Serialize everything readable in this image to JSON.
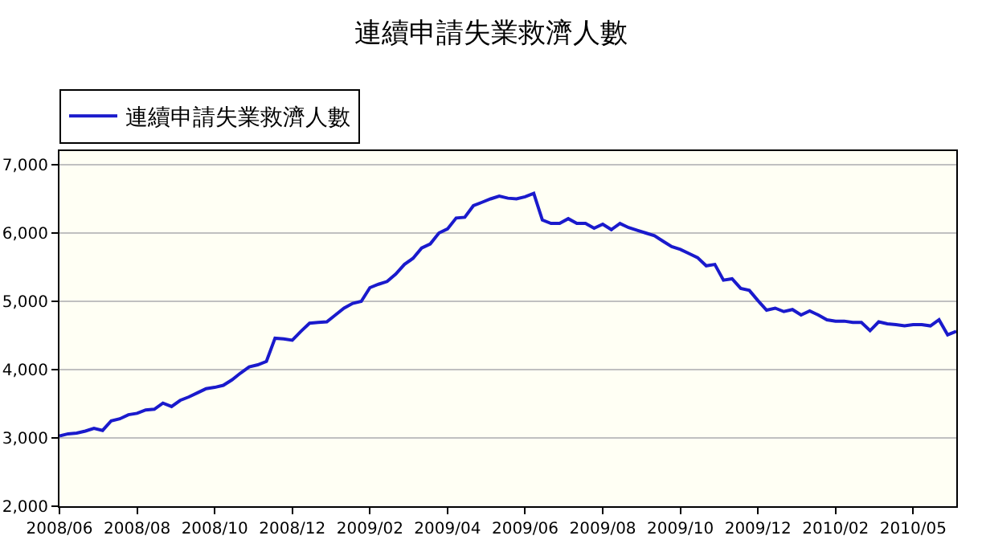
{
  "chart_data": {
    "type": "line",
    "title": "連續申請失業救濟人數",
    "x": [
      "2008-06-07",
      "2008-06-14",
      "2008-06-21",
      "2008-06-28",
      "2008-07-05",
      "2008-07-12",
      "2008-07-19",
      "2008-07-26",
      "2008-08-02",
      "2008-08-09",
      "2008-08-16",
      "2008-08-23",
      "2008-08-30",
      "2008-09-06",
      "2008-09-13",
      "2008-09-20",
      "2008-09-27",
      "2008-10-04",
      "2008-10-11",
      "2008-10-18",
      "2008-10-25",
      "2008-11-01",
      "2008-11-08",
      "2008-11-15",
      "2008-11-22",
      "2008-11-29",
      "2008-12-06",
      "2008-12-13",
      "2008-12-20",
      "2008-12-27",
      "2009-01-03",
      "2009-01-10",
      "2009-01-17",
      "2009-01-24",
      "2009-01-31",
      "2009-02-07",
      "2009-02-14",
      "2009-02-21",
      "2009-02-28",
      "2009-03-07",
      "2009-03-14",
      "2009-03-21",
      "2009-03-28",
      "2009-04-04",
      "2009-04-11",
      "2009-04-18",
      "2009-04-25",
      "2009-05-02",
      "2009-05-09",
      "2009-05-16",
      "2009-05-23",
      "2009-05-30",
      "2009-06-06",
      "2009-06-13",
      "2009-06-20",
      "2009-06-27",
      "2009-07-04",
      "2009-07-11",
      "2009-07-18",
      "2009-07-25",
      "2009-08-01",
      "2009-08-08",
      "2009-08-15",
      "2009-08-22",
      "2009-08-29",
      "2009-09-05",
      "2009-09-12",
      "2009-09-19",
      "2009-09-26",
      "2009-10-03",
      "2009-10-10",
      "2009-10-17",
      "2009-10-24",
      "2009-10-31",
      "2009-11-07",
      "2009-11-14",
      "2009-11-21",
      "2009-11-28",
      "2009-12-05",
      "2009-12-12",
      "2009-12-19",
      "2009-12-26",
      "2010-01-02",
      "2010-01-09",
      "2010-01-16",
      "2010-01-23",
      "2010-01-30",
      "2010-02-06",
      "2010-02-13",
      "2010-02-20",
      "2010-02-27",
      "2010-03-06",
      "2010-03-13",
      "2010-03-20",
      "2010-03-27",
      "2010-04-03",
      "2010-04-10",
      "2010-04-17",
      "2010-04-24",
      "2010-05-01",
      "2010-05-08",
      "2010-05-15",
      "2010-05-22",
      "2010-05-29",
      "2010-06-05"
    ],
    "series": [
      {
        "name": "連續申請失業救濟人數",
        "color": "#1a1acc",
        "values": [
          3030,
          3060,
          3070,
          3100,
          3140,
          3110,
          3250,
          3280,
          3340,
          3360,
          3410,
          3420,
          3510,
          3460,
          3550,
          3600,
          3660,
          3720,
          3740,
          3770,
          3850,
          3950,
          4040,
          4070,
          4120,
          4460,
          4450,
          4430,
          4560,
          4680,
          4690,
          4700,
          4800,
          4900,
          4970,
          5000,
          5200,
          5250,
          5290,
          5400,
          5540,
          5630,
          5780,
          5840,
          6000,
          6060,
          6220,
          6230,
          6400,
          6450,
          6500,
          6540,
          6510,
          6500,
          6530,
          6580,
          6190,
          6140,
          6140,
          6210,
          6140,
          6140,
          6070,
          6130,
          6050,
          6140,
          6080,
          6040,
          6000,
          5960,
          5880,
          5800,
          5760,
          5700,
          5640,
          5520,
          5540,
          5310,
          5330,
          5190,
          5160,
          5010,
          4870,
          4900,
          4850,
          4880,
          4800,
          4860,
          4800,
          4730,
          4710,
          4710,
          4690,
          4690,
          4570,
          4700,
          4670,
          4660,
          4640,
          4660,
          4660,
          4640,
          4730,
          4510,
          4560
        ]
      }
    ],
    "xlim": [
      "2008-06-07",
      "2010-06-05"
    ],
    "xticks": [
      {
        "value": "2008-06-07",
        "label": "2008/06"
      },
      {
        "value": "2008-08-09",
        "label": "2008/08"
      },
      {
        "value": "2008-10-11",
        "label": "2008/10"
      },
      {
        "value": "2008-12-13",
        "label": "2008/12"
      },
      {
        "value": "2009-02-14",
        "label": "2009/02"
      },
      {
        "value": "2009-04-18",
        "label": "2009/04"
      },
      {
        "value": "2009-06-20",
        "label": "2009/06"
      },
      {
        "value": "2009-08-22",
        "label": "2009/08"
      },
      {
        "value": "2009-10-24",
        "label": "2009/10"
      },
      {
        "value": "2009-12-26",
        "label": "2009/12"
      },
      {
        "value": "2010-02-27",
        "label": "2010/02"
      },
      {
        "value": "2010-05-01",
        "label": "2010/05"
      }
    ],
    "ylim": [
      2000,
      7200
    ],
    "yticks": [
      {
        "value": 2000,
        "label": "2,000"
      },
      {
        "value": 3000,
        "label": "3,000"
      },
      {
        "value": 4000,
        "label": "4,000"
      },
      {
        "value": 5000,
        "label": "5,000"
      },
      {
        "value": 6000,
        "label": "6,000"
      },
      {
        "value": 7000,
        "label": "7,000"
      }
    ],
    "grid": "y",
    "legend": "top left",
    "marker": "none",
    "line_style": "solid"
  }
}
